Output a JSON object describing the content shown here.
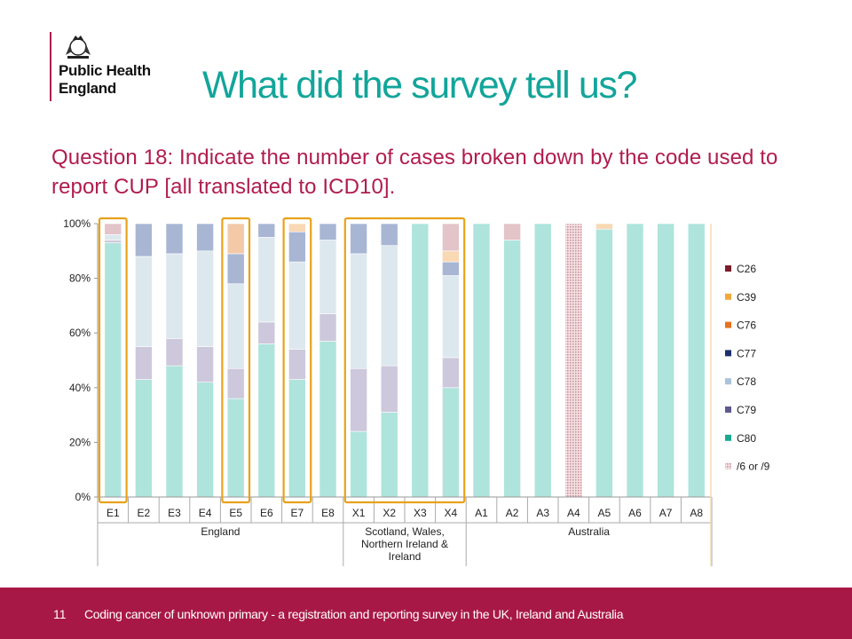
{
  "header": {
    "logo_line1": "Public Health",
    "logo_line2": "England",
    "title": "What did the survey tell us?"
  },
  "subtitle": "Question 18: Indicate the number of cases broken down by the code used to report CUP [all translated to ICD10].",
  "footer": {
    "page_number": "11",
    "text": "Coding cancer of unknown primary - a registration and reporting survey in the UK, Ireland and Australia"
  },
  "colors": {
    "accent": "#12a59a",
    "brand": "#b01c4e",
    "highlight_box": "#e8a21a"
  },
  "chart_data": {
    "type": "bar",
    "stacked": "percent",
    "title": "",
    "xlabel": "",
    "ylabel": "",
    "ylim": [
      0,
      100
    ],
    "y_ticks": [
      "0%",
      "20%",
      "40%",
      "60%",
      "80%",
      "100%"
    ],
    "grid": false,
    "legend_position": "right",
    "categories": [
      "E1",
      "E2",
      "E3",
      "E4",
      "E5",
      "E6",
      "E7",
      "E8",
      "X1",
      "X2",
      "X3",
      "X4",
      "A1",
      "A2",
      "A3",
      "A4",
      "A5",
      "A6",
      "A7",
      "A8"
    ],
    "groups": [
      {
        "label": "England",
        "members": [
          "E1",
          "E2",
          "E3",
          "E4",
          "E5",
          "E6",
          "E7",
          "E8"
        ]
      },
      {
        "label": "Scotland, Wales, Northern Ireland & Ireland",
        "lines": [
          "Scotland, Wales,",
          "Northern Ireland &",
          "Ireland"
        ],
        "members": [
          "X1",
          "X2",
          "X3",
          "X4"
        ]
      },
      {
        "label": "Australia",
        "members": [
          "A1",
          "A2",
          "A3",
          "A4",
          "A5",
          "A6",
          "A7",
          "A8"
        ]
      }
    ],
    "highlighted": [
      [
        "E1"
      ],
      [
        "E5"
      ],
      [
        "E7"
      ],
      [
        "X1",
        "X2",
        "X3",
        "X4"
      ]
    ],
    "series": [
      {
        "name": "C80",
        "color": "#aee4dc",
        "values": [
          93,
          43,
          48,
          42,
          36,
          56,
          43,
          57,
          24,
          31,
          100,
          40,
          100,
          94,
          100,
          0,
          98,
          100,
          100,
          100
        ]
      },
      {
        "name": "C79",
        "color": "#cdc8dc",
        "values": [
          1,
          12,
          10,
          13,
          11,
          8,
          11,
          10,
          23,
          17,
          0,
          11,
          0,
          0,
          0,
          0,
          0,
          0,
          0,
          0
        ]
      },
      {
        "name": "C78",
        "color": "#dde8ee",
        "values": [
          2,
          33,
          31,
          35,
          31,
          31,
          32,
          27,
          42,
          44,
          0,
          30,
          0,
          0,
          0,
          0,
          0,
          0,
          0,
          0
        ]
      },
      {
        "name": "C77",
        "color": "#a8b6d4",
        "values": [
          0,
          12,
          11,
          10,
          11,
          5,
          11,
          6,
          11,
          8,
          0,
          5,
          0,
          0,
          0,
          0,
          0,
          0,
          0,
          0
        ]
      },
      {
        "name": "C76",
        "color": "#f3c9a8",
        "values": [
          0,
          0,
          0,
          0,
          11,
          0,
          0,
          0,
          0,
          0,
          0,
          0,
          0,
          0,
          0,
          0,
          0,
          0,
          0,
          0
        ]
      },
      {
        "name": "C39",
        "color": "#f9d8b4",
        "values": [
          0,
          0,
          0,
          0,
          0,
          0,
          3,
          0,
          0,
          0,
          0,
          4,
          0,
          0,
          0,
          0,
          2,
          0,
          0,
          0
        ]
      },
      {
        "name": "C26",
        "color": "#e2c4c9",
        "values": [
          4,
          0,
          0,
          0,
          0,
          0,
          0,
          0,
          0,
          0,
          0,
          10,
          0,
          6,
          0,
          0,
          0,
          0,
          0,
          0
        ]
      },
      {
        "name": "/6 or /9",
        "color": "#f0d8dc",
        "pattern": true,
        "values": [
          0,
          0,
          0,
          0,
          0,
          0,
          0,
          0,
          0,
          0,
          0,
          0,
          0,
          0,
          0,
          100,
          0,
          0,
          0,
          0
        ]
      }
    ],
    "legend": [
      {
        "name": "C26",
        "color": "#7b1c2c"
      },
      {
        "name": "C39",
        "color": "#f2a93b"
      },
      {
        "name": "C76",
        "color": "#e8701c"
      },
      {
        "name": "C77",
        "color": "#1c2f6e"
      },
      {
        "name": "C78",
        "color": "#a9c3d9"
      },
      {
        "name": "C79",
        "color": "#5e5a8e"
      },
      {
        "name": "C80",
        "color": "#1aa98f"
      },
      {
        "name": "/6 or /9",
        "color": "#c98a94",
        "pattern": true
      }
    ]
  }
}
